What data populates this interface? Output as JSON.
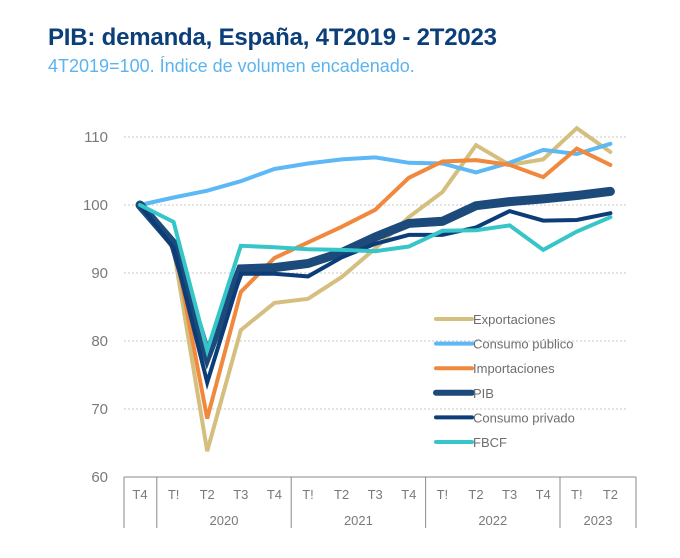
{
  "header": {
    "title": "PIB: demanda, España, 4T2019 - 2T2023",
    "subtitle": "4T2019=100. Índice de volumen encadenado."
  },
  "chart_data": {
    "type": "line",
    "title": "PIB: demanda, España, 4T2019 - 2T2023",
    "subtitle": "4T2019=100. Índice de volumen encadenado.",
    "xlabel": "",
    "ylabel": "",
    "ylim": [
      60,
      110
    ],
    "yticks": [
      60,
      70,
      80,
      90,
      100,
      110
    ],
    "grid": true,
    "legend_position": "bottom-right",
    "x": [
      "T4",
      "T!",
      "T2",
      "T3",
      "T4",
      "T!",
      "T2",
      "T3",
      "T4",
      "T!",
      "T2",
      "T3",
      "T4",
      "T!",
      "T2"
    ],
    "year_groups": [
      {
        "label": "",
        "count": 1
      },
      {
        "label": "2020",
        "count": 4
      },
      {
        "label": "2021",
        "count": 4
      },
      {
        "label": "2022",
        "count": 4
      },
      {
        "label": "2023",
        "count": 2
      }
    ],
    "series": [
      {
        "name": "Exportaciones",
        "color": "#d4bf7f",
        "width": 4,
        "values": [
          100,
          93.5,
          63.8,
          81.6,
          85.6,
          86.2,
          89.4,
          93.6,
          98.2,
          101.9,
          108.8,
          105.9,
          106.7,
          111.3,
          107.8
        ]
      },
      {
        "name": "Consumo público",
        "color": "#5db8f5",
        "width": 4,
        "values": [
          100,
          101.1,
          102.1,
          103.5,
          105.3,
          106.1,
          106.7,
          107.0,
          106.2,
          106.1,
          104.8,
          106.2,
          108.1,
          107.5,
          109.0
        ]
      },
      {
        "name": "Importaciones",
        "color": "#f0883e",
        "width": 4,
        "values": [
          100,
          94.8,
          68.6,
          87.2,
          92.2,
          94.5,
          96.8,
          99.3,
          104.0,
          106.4,
          106.6,
          105.9,
          104.1,
          108.3,
          105.9
        ]
      },
      {
        "name": "PIB",
        "color": "#1c4a7a",
        "width": 9,
        "values": [
          100,
          94.3,
          77.8,
          90.6,
          90.8,
          91.4,
          93.0,
          95.3,
          97.3,
          97.6,
          99.9,
          100.5,
          100.9,
          101.4,
          102.0
        ]
      },
      {
        "name": "Consumo privado",
        "color": "#0d3d78",
        "width": 4,
        "values": [
          100,
          93.7,
          73.9,
          89.9,
          89.9,
          89.5,
          92.3,
          94.3,
          95.6,
          95.6,
          96.7,
          99.1,
          97.7,
          97.8,
          98.8
        ]
      },
      {
        "name": "FBCF",
        "color": "#36c5c8",
        "width": 4,
        "values": [
          100,
          97.5,
          78.6,
          94.0,
          93.8,
          93.5,
          93.4,
          93.2,
          93.9,
          96.2,
          96.3,
          97.0,
          93.4,
          96.1,
          98.2
        ]
      }
    ]
  }
}
